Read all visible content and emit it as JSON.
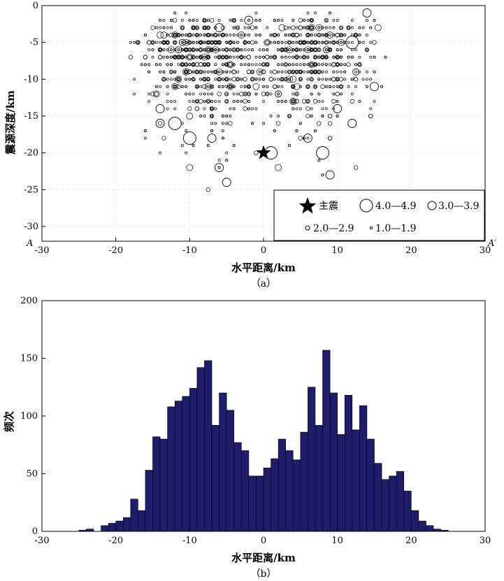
{
  "chart_data": [
    {
      "type": "scatter",
      "title": "",
      "xlabel": "水平距离/km",
      "ylabel": "震源深度/km",
      "xlim": [
        -30,
        30
      ],
      "ylim": [
        -32,
        0
      ],
      "xticks": [
        "-30",
        "-20",
        "-10",
        "0",
        "10",
        "20",
        "30"
      ],
      "yticks": [
        "0",
        "-5",
        "-10",
        "-15",
        "-20",
        "-25",
        "-30"
      ],
      "corner_left": "A",
      "corner_right": "A′",
      "caption": "（a）",
      "grid": true,
      "legend_position": "bottom-right",
      "legend": {
        "mainshock": "主震",
        "mag_4": "4.0—4.9",
        "mag_3": "3.0—3.9",
        "mag_2": "2.0—2.9",
        "mag_1": "1.0—1.9"
      },
      "mainshock": {
        "x": 0,
        "y": -20
      },
      "large_events": [
        {
          "x": -12,
          "y": -16,
          "m": 4.5
        },
        {
          "x": -10,
          "y": -18,
          "m": 4.3
        },
        {
          "x": -14,
          "y": -16,
          "m": 3.6
        },
        {
          "x": -6,
          "y": -22,
          "m": 3.6
        },
        {
          "x": -5,
          "y": -24,
          "m": 3.3
        },
        {
          "x": 1,
          "y": -20,
          "m": 4.0
        },
        {
          "x": 6,
          "y": -18,
          "m": 3.4
        },
        {
          "x": 8,
          "y": -20,
          "m": 4.2
        },
        {
          "x": 9,
          "y": -23,
          "m": 3.8
        },
        {
          "x": 12,
          "y": -16,
          "m": 3.5
        },
        {
          "x": 12,
          "y": -5,
          "m": 4.6
        },
        {
          "x": -2,
          "y": -2,
          "m": 3.5
        },
        {
          "x": 14,
          "y": -1,
          "m": 3.3
        },
        {
          "x": -6,
          "y": -3,
          "m": 3.4
        },
        {
          "x": -7,
          "y": -18,
          "m": 3.5
        },
        {
          "x": 10,
          "y": -14,
          "m": 3.3
        },
        {
          "x": 15,
          "y": -11,
          "m": 3.3
        },
        {
          "x": -14,
          "y": -14,
          "m": 3.2
        }
      ],
      "cluster_density": {
        "upper_pct": "approx",
        "note": ""
      },
      "colors": {
        "marker": "#000000",
        "frame": "#000000",
        "grid": "#c8c8c8"
      }
    },
    {
      "type": "bar",
      "title": "",
      "xlabel": "水平距离/km",
      "ylabel": "频次",
      "xlim": [
        -30,
        30
      ],
      "ylim": [
        0,
        200
      ],
      "xticks": [
        "-30",
        "-20",
        "-10",
        "0",
        "10",
        "20",
        "30"
      ],
      "yticks": [
        "0",
        "50",
        "100",
        "150",
        "200"
      ],
      "caption": "（b）",
      "bin_width": 1,
      "bin_start": -25,
      "values": [
        1,
        2,
        0,
        5,
        7,
        9,
        12,
        28,
        18,
        53,
        82,
        80,
        108,
        113,
        117,
        124,
        142,
        148,
        92,
        120,
        105,
        77,
        70,
        48,
        48,
        55,
        63,
        80,
        70,
        62,
        86,
        125,
        92,
        157,
        120,
        84,
        118,
        88,
        109,
        80,
        59,
        45,
        48,
        52,
        35,
        18,
        9,
        5,
        2,
        1,
        0
      ],
      "colors": {
        "bar": "#1d1d6b",
        "edge": "#000000"
      }
    }
  ]
}
